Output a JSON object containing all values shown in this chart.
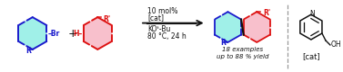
{
  "bg_color": "#ffffff",
  "blue_color": "#1a1acc",
  "red_color": "#dd1111",
  "black_color": "#111111",
  "ring_fill_blue": "#a0f0e8",
  "ring_fill_red": "#f8c0cc",
  "dashed_line_color": "#999999",
  "arrow_color": "#111111",
  "condition_line1": "10 mol%",
  "condition_line2": "[cat]",
  "condition_line3": "KOᵗ-Bu",
  "condition_line4": "80 °C, 24 h",
  "result_line1": "18 examples",
  "result_line2": "up to 88 % yield",
  "cat_label": "[cat]",
  "figsize": [
    3.77,
    0.8
  ],
  "dpi": 100
}
